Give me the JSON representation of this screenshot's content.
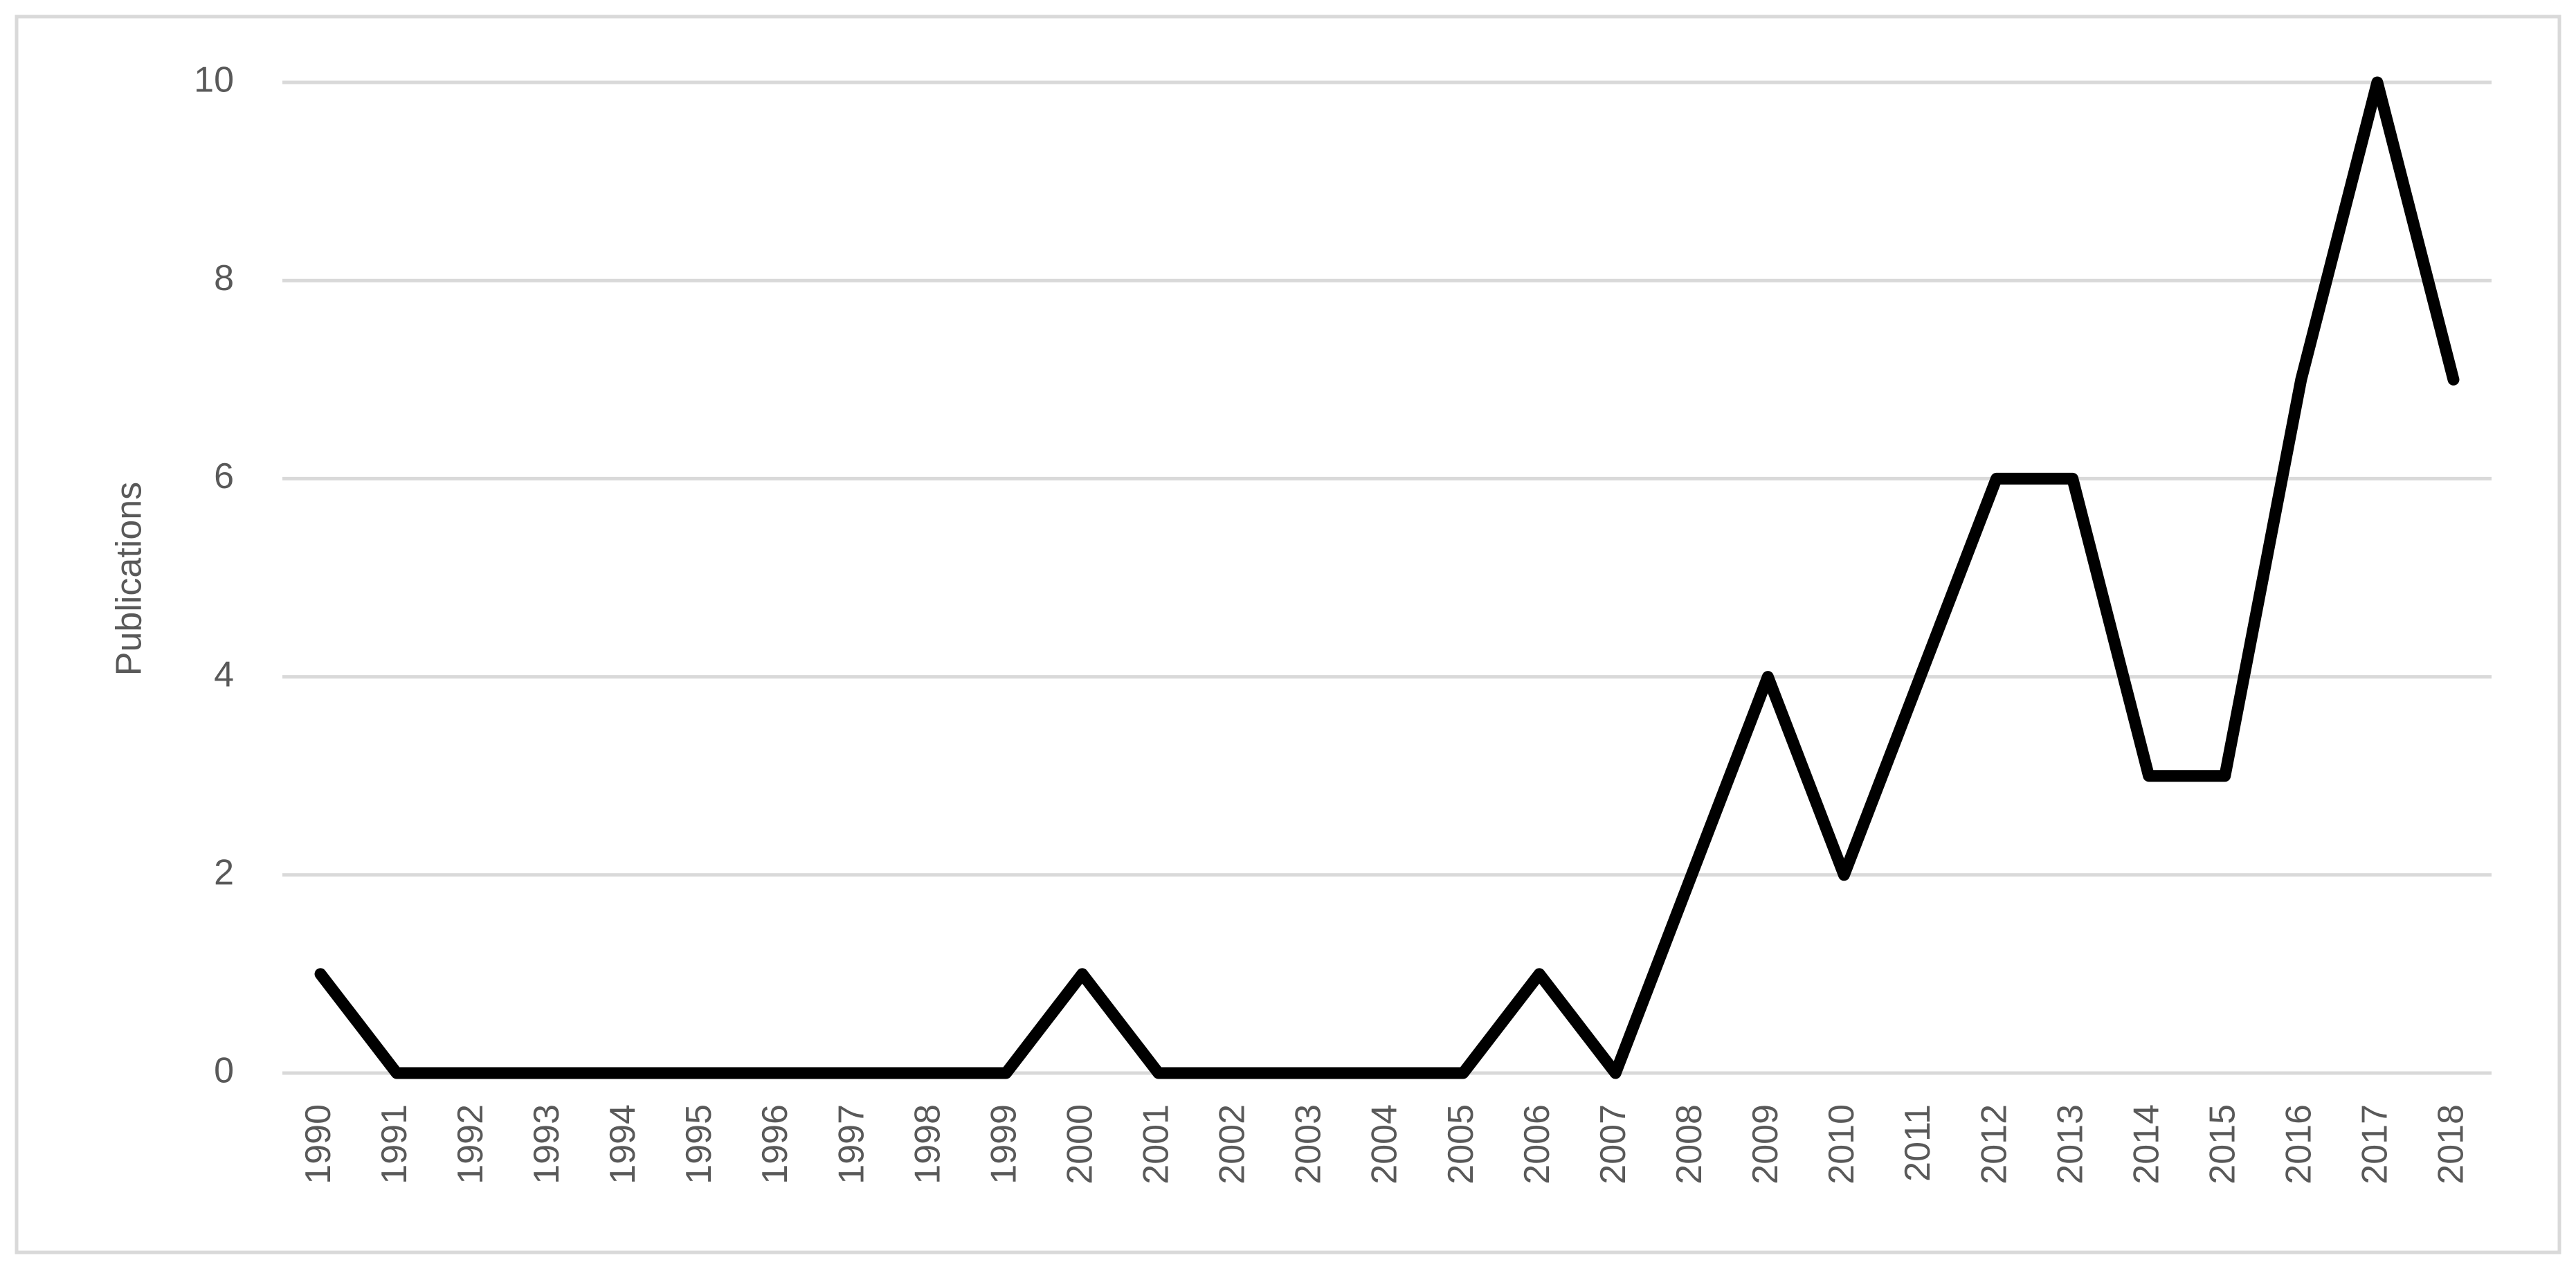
{
  "chart_data": {
    "type": "line",
    "y_label": "Publications",
    "categories": [
      "1990",
      "1991",
      "1992",
      "1993",
      "1994",
      "1995",
      "1996",
      "1997",
      "1998",
      "1999",
      "2000",
      "2001",
      "2002",
      "2003",
      "2004",
      "2005",
      "2006",
      "2007",
      "2008",
      "2009",
      "2010",
      "2011",
      "2012",
      "2013",
      "2014",
      "2015",
      "2016",
      "2017",
      "2018"
    ],
    "values": [
      1,
      0,
      0,
      0,
      0,
      0,
      0,
      0,
      0,
      0,
      1,
      0,
      0,
      0,
      0,
      0,
      1,
      0,
      2,
      4,
      2,
      4,
      6,
      6,
      3,
      3,
      7,
      10,
      7
    ],
    "color": "#000000",
    "ylim": [
      0,
      10
    ],
    "yticks": [
      0,
      2,
      4,
      6,
      8,
      10
    ],
    "grid": true
  }
}
